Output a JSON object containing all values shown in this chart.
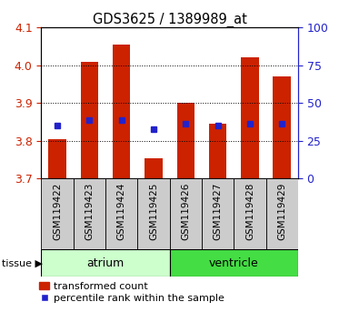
{
  "title": "GDS3625 / 1389989_at",
  "samples": [
    "GSM119422",
    "GSM119423",
    "GSM119424",
    "GSM119425",
    "GSM119426",
    "GSM119427",
    "GSM119428",
    "GSM119429"
  ],
  "red_bar_tops": [
    3.805,
    4.01,
    4.055,
    3.755,
    3.9,
    3.845,
    4.02,
    3.97
  ],
  "blue_values": [
    3.84,
    3.855,
    3.855,
    3.83,
    3.845,
    3.84,
    3.845,
    3.845
  ],
  "bar_bottom": 3.7,
  "ylim": [
    3.7,
    4.1
  ],
  "yticks_left": [
    3.7,
    3.8,
    3.9,
    4.0,
    4.1
  ],
  "yticks_right": [
    0,
    25,
    50,
    75,
    100
  ],
  "red_color": "#CC2200",
  "blue_color": "#2222CC",
  "bar_width": 0.55,
  "tissue_groups": [
    {
      "label": "atrium",
      "indices": [
        0,
        1,
        2,
        3
      ],
      "color": "#BBFFBB"
    },
    {
      "label": "ventricle",
      "indices": [
        4,
        5,
        6,
        7
      ],
      "color": "#44EE44"
    }
  ],
  "label_color_red": "#CC2200",
  "label_color_blue": "#2222CC",
  "grid_color": "#000000",
  "tick_bg": "#cccccc",
  "atrium_color": "#CCFFCC",
  "ventricle_color": "#44DD44"
}
